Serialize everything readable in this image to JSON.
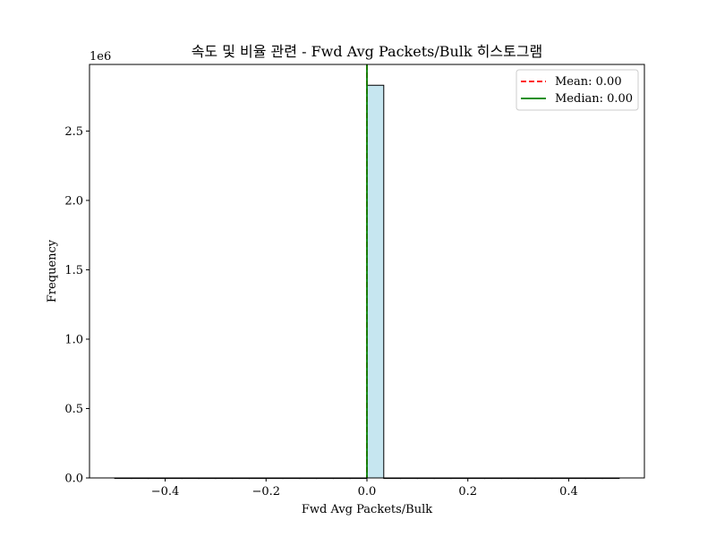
{
  "chart_data": {
    "type": "histogram",
    "title": "속도 및 비율 관련 - Fwd Avg Packets/Bulk 히스토그램",
    "xlabel": "Fwd Avg Packets/Bulk",
    "ylabel": "Frequency",
    "y_offset_label": "1e6",
    "xlim": [
      -0.55,
      0.55
    ],
    "ylim": [
      0,
      2.98
    ],
    "x_ticks": [
      -0.4,
      -0.2,
      0.0,
      0.2,
      0.4
    ],
    "x_tick_labels": [
      "−0.4",
      "−0.2",
      "0.0",
      "0.2",
      "0.4"
    ],
    "y_ticks": [
      0.0,
      0.5,
      1.0,
      1.5,
      2.0,
      2.5
    ],
    "y_tick_labels": [
      "0.0",
      "0.5",
      "1.0",
      "1.5",
      "2.0",
      "2.5"
    ],
    "bins": {
      "start": -0.5,
      "end": 0.5,
      "count": 30,
      "values": [
        0,
        0,
        0,
        0,
        0,
        0,
        0,
        0,
        0,
        0,
        0,
        0,
        0,
        0,
        0,
        2.83,
        0,
        0,
        0,
        0,
        0,
        0,
        0,
        0,
        0,
        0,
        0,
        0,
        0,
        0
      ]
    },
    "bar_color": "#c6e6f0",
    "bar_edge_color": "#000000",
    "mean": {
      "value": 0.0,
      "label": "Mean: 0.00",
      "color": "#ff0000",
      "style": "dashed"
    },
    "median": {
      "value": 0.0,
      "label": "Median: 0.00",
      "color": "#008000",
      "style": "solid"
    },
    "legend_position": "top-right",
    "grid": false
  }
}
